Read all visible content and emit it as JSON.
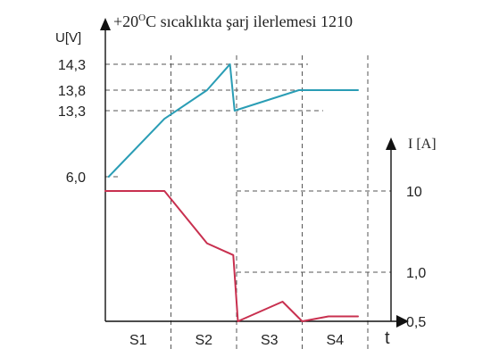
{
  "chart_data": {
    "type": "line",
    "title_prefix": "+20",
    "title_superscript": "O",
    "title_rest": "C sıcaklıkta şarj ilerlemesi 1210",
    "left_axis_label": "U[V]",
    "right_axis_label": "I [A]",
    "x_axis_label": "t",
    "stages": [
      "S1",
      "S2",
      "S3",
      "S4"
    ],
    "voltage_ticks": [
      "14,3",
      "13,8",
      "13,3",
      "6,0"
    ],
    "current_ticks": [
      "10",
      "1,0",
      "0,5"
    ],
    "x_range": [
      0,
      4
    ],
    "series": [
      {
        "axis": "left",
        "color": "#2a9db5",
        "points": [
          [
            0.05,
            6.0
          ],
          [
            0.9,
            12.4
          ],
          [
            1.55,
            13.8
          ],
          [
            1.9,
            14.3
          ],
          [
            1.97,
            13.3
          ],
          [
            2.95,
            13.8
          ],
          [
            3.85,
            13.8
          ]
        ]
      },
      {
        "axis": "right",
        "color": "#c8304f",
        "points": [
          [
            0,
            10
          ],
          [
            0.9,
            10
          ],
          [
            1.55,
            4.2
          ],
          [
            1.95,
            2.9
          ],
          [
            2.02,
            0.5
          ],
          [
            2.7,
            0.7
          ],
          [
            3.0,
            0.5
          ],
          [
            3.4,
            0.55
          ],
          [
            3.85,
            0.55
          ]
        ]
      }
    ],
    "grid": false
  }
}
